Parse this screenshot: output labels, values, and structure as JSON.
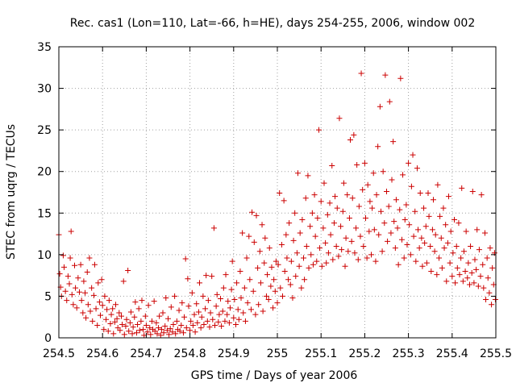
{
  "chart_data": {
    "type": "scatter",
    "title": "Rec. cas1 (Lon=110, Lat=-66, h=HE), days 254-255, 2006, window 002",
    "xlabel": "GPS time / Days of year 2006",
    "ylabel": "STEC from uqrg / TECUs",
    "xlim": [
      254.5,
      255.5
    ],
    "ylim": [
      0,
      35
    ],
    "xticks": [
      254.5,
      254.6,
      254.7,
      254.8,
      254.9,
      255,
      255.1,
      255.2,
      255.3,
      255.4,
      255.5
    ],
    "xtick_labels": [
      "254.5",
      "254.6",
      "254.7",
      "254.8",
      "254.9",
      "255",
      "255.1",
      "255.2",
      "255.3",
      "255.4",
      "255.5"
    ],
    "yticks": [
      0,
      5,
      10,
      15,
      20,
      25,
      30,
      35
    ],
    "ytick_labels": [
      "0",
      "5",
      "10",
      "15",
      "20",
      "25",
      "30",
      "35"
    ],
    "grid": true,
    "marker": "+",
    "color": "#cc0000",
    "points": [
      [
        254.5,
        12.4
      ],
      [
        254.502,
        7.7
      ],
      [
        254.504,
        6.1
      ],
      [
        254.506,
        5.0
      ],
      [
        254.51,
        9.9
      ],
      [
        254.512,
        8.5
      ],
      [
        254.515,
        5.6
      ],
      [
        254.518,
        4.5
      ],
      [
        254.521,
        7.4
      ],
      [
        254.524,
        6.5
      ],
      [
        254.526,
        9.6
      ],
      [
        254.528,
        12.8
      ],
      [
        254.53,
        5.2
      ],
      [
        254.533,
        4.0
      ],
      [
        254.536,
        8.7
      ],
      [
        254.538,
        6.0
      ],
      [
        254.541,
        3.6
      ],
      [
        254.544,
        7.2
      ],
      [
        254.547,
        5.5
      ],
      [
        254.55,
        8.8
      ],
      [
        254.552,
        4.5
      ],
      [
        254.555,
        3.0
      ],
      [
        254.557,
        6.8
      ],
      [
        254.56,
        5.4
      ],
      [
        254.562,
        2.4
      ],
      [
        254.565,
        7.9
      ],
      [
        254.567,
        4.0
      ],
      [
        254.57,
        9.6
      ],
      [
        254.572,
        3.2
      ],
      [
        254.575,
        6.0
      ],
      [
        254.577,
        2.0
      ],
      [
        254.58,
        5.1
      ],
      [
        254.582,
        8.8
      ],
      [
        254.585,
        3.5
      ],
      [
        254.588,
        1.5
      ],
      [
        254.59,
        6.6
      ],
      [
        254.593,
        4.3
      ],
      [
        254.595,
        2.7
      ],
      [
        254.598,
        7.0
      ],
      [
        254.6,
        3.9
      ],
      [
        254.603,
        1.0
      ],
      [
        254.605,
        5.0
      ],
      [
        254.608,
        2.2
      ],
      [
        254.61,
        3.4
      ],
      [
        254.613,
        0.8
      ],
      [
        254.615,
        4.5
      ],
      [
        254.618,
        1.7
      ],
      [
        254.62,
        2.8
      ],
      [
        254.623,
        3.5
      ],
      [
        254.625,
        0.5
      ],
      [
        254.628,
        1.9
      ],
      [
        254.63,
        4.0
      ],
      [
        254.633,
        2.3
      ],
      [
        254.635,
        1.2
      ],
      [
        254.638,
        3.0
      ],
      [
        254.64,
        0.9
      ],
      [
        254.643,
        2.6
      ],
      [
        254.645,
        1.6
      ],
      [
        254.648,
        6.8
      ],
      [
        254.65,
        0.4
      ],
      [
        254.653,
        1.4
      ],
      [
        254.655,
        2.2
      ],
      [
        254.658,
        8.1
      ],
      [
        254.66,
        0.8
      ],
      [
        254.663,
        1.8
      ],
      [
        254.665,
        3.1
      ],
      [
        254.668,
        0.5
      ],
      [
        254.67,
        1.3
      ],
      [
        254.673,
        2.5
      ],
      [
        254.675,
        4.3
      ],
      [
        254.678,
        0.6
      ],
      [
        254.68,
        1.6
      ],
      [
        254.683,
        3.5
      ],
      [
        254.685,
        0.9
      ],
      [
        254.688,
        2.0
      ],
      [
        254.69,
        4.5
      ],
      [
        254.693,
        1.0
      ],
      [
        254.695,
        0.3
      ],
      [
        254.698,
        2.6
      ],
      [
        254.7,
        1.5
      ],
      [
        254.703,
        0.7
      ],
      [
        254.705,
        3.9
      ],
      [
        254.708,
        1.2
      ],
      [
        254.71,
        0.4
      ],
      [
        254.713,
        2.0
      ],
      [
        254.715,
        1.0
      ],
      [
        254.718,
        4.4
      ],
      [
        254.72,
        0.8
      ],
      [
        254.723,
        1.8
      ],
      [
        254.725,
        0.5
      ],
      [
        254.728,
        1.2
      ],
      [
        254.73,
        2.6
      ],
      [
        254.733,
        0.3
      ],
      [
        254.735,
        1.0
      ],
      [
        254.738,
        3.0
      ],
      [
        254.74,
        0.6
      ],
      [
        254.743,
        1.4
      ],
      [
        254.745,
        4.8
      ],
      [
        254.748,
        0.9
      ],
      [
        254.75,
        2.3
      ],
      [
        254.752,
        0.4
      ],
      [
        254.755,
        1.1
      ],
      [
        254.757,
        3.7
      ],
      [
        254.76,
        0.7
      ],
      [
        254.762,
        1.6
      ],
      [
        254.765,
        5.0
      ],
      [
        254.767,
        0.5
      ],
      [
        254.77,
        2.0
      ],
      [
        254.772,
        1.0
      ],
      [
        254.775,
        3.3
      ],
      [
        254.777,
        0.8
      ],
      [
        254.78,
        1.5
      ],
      [
        254.782,
        4.2
      ],
      [
        254.785,
        0.6
      ],
      [
        254.787,
        2.5
      ],
      [
        254.79,
        9.5
      ],
      [
        254.792,
        1.2
      ],
      [
        254.795,
        7.1
      ],
      [
        254.797,
        3.8
      ],
      [
        254.8,
        0.9
      ],
      [
        254.802,
        2.0
      ],
      [
        254.805,
        5.4
      ],
      [
        254.807,
        1.5
      ],
      [
        254.81,
        2.8
      ],
      [
        254.812,
        0.7
      ],
      [
        254.815,
        4.1
      ],
      [
        254.817,
        1.8
      ],
      [
        254.82,
        3.1
      ],
      [
        254.822,
        6.6
      ],
      [
        254.825,
        1.2
      ],
      [
        254.827,
        2.5
      ],
      [
        254.83,
        5.0
      ],
      [
        254.832,
        1.6
      ],
      [
        254.835,
        3.5
      ],
      [
        254.837,
        7.5
      ],
      [
        254.84,
        2.0
      ],
      [
        254.842,
        4.5
      ],
      [
        254.845,
        1.3
      ],
      [
        254.847,
        3.0
      ],
      [
        254.85,
        7.4
      ],
      [
        254.852,
        2.2
      ],
      [
        254.855,
        13.2
      ],
      [
        254.857,
        1.5
      ],
      [
        254.86,
        3.8
      ],
      [
        254.862,
        5.2
      ],
      [
        254.865,
        1.9
      ],
      [
        254.867,
        2.8
      ],
      [
        254.87,
        4.7
      ],
      [
        254.872,
        1.4
      ],
      [
        254.875,
        3.2
      ],
      [
        254.877,
        6.0
      ],
      [
        254.88,
        2.0
      ],
      [
        254.882,
        7.6
      ],
      [
        254.885,
        2.8
      ],
      [
        254.887,
        4.4
      ],
      [
        254.89,
        1.8
      ],
      [
        254.892,
        3.6
      ],
      [
        254.895,
        5.8
      ],
      [
        254.897,
        9.2
      ],
      [
        254.9,
        2.4
      ],
      [
        254.902,
        4.6
      ],
      [
        254.905,
        1.6
      ],
      [
        254.907,
        6.6
      ],
      [
        254.91,
        3.4
      ],
      [
        254.912,
        2.2
      ],
      [
        254.915,
        8.0
      ],
      [
        254.917,
        4.8
      ],
      [
        254.92,
        12.6
      ],
      [
        254.922,
        3.0
      ],
      [
        254.925,
        6.0
      ],
      [
        254.927,
        2.0
      ],
      [
        254.93,
        9.6
      ],
      [
        254.932,
        4.2
      ],
      [
        254.935,
        12.2
      ],
      [
        254.937,
        7.0
      ],
      [
        254.94,
        3.4
      ],
      [
        254.942,
        15.1
      ],
      [
        254.945,
        5.6
      ],
      [
        254.947,
        11.5
      ],
      [
        254.95,
        2.8
      ],
      [
        254.952,
        14.7
      ],
      [
        254.955,
        8.4
      ],
      [
        254.957,
        4.0
      ],
      [
        254.96,
        10.4
      ],
      [
        254.962,
        6.6
      ],
      [
        254.965,
        13.6
      ],
      [
        254.967,
        3.2
      ],
      [
        254.97,
        9.0
      ],
      [
        254.972,
        12.0
      ],
      [
        254.975,
        5.0
      ],
      [
        254.977,
        7.6
      ],
      [
        254.98,
        4.6
      ],
      [
        254.982,
        10.8
      ],
      [
        254.985,
        6.2
      ],
      [
        254.987,
        8.5
      ],
      [
        254.99,
        3.6
      ],
      [
        254.992,
        7.0
      ],
      [
        254.995,
        5.6
      ],
      [
        254.997,
        9.2
      ],
      [
        255.0,
        4.2
      ],
      [
        255.002,
        8.8
      ],
      [
        255.005,
        17.4
      ],
      [
        255.007,
        6.0
      ],
      [
        255.01,
        11.2
      ],
      [
        255.012,
        5.0
      ],
      [
        255.015,
        16.5
      ],
      [
        255.017,
        8.0
      ],
      [
        255.02,
        12.4
      ],
      [
        255.022,
        9.6
      ],
      [
        255.025,
        7.0
      ],
      [
        255.027,
        13.8
      ],
      [
        255.03,
        6.4
      ],
      [
        255.032,
        9.2
      ],
      [
        255.035,
        4.8
      ],
      [
        255.037,
        11.7
      ],
      [
        255.04,
        15.0
      ],
      [
        255.042,
        7.4
      ],
      [
        255.045,
        10.2
      ],
      [
        255.047,
        19.8
      ],
      [
        255.05,
        8.6
      ],
      [
        255.052,
        12.6
      ],
      [
        255.055,
        6.0
      ],
      [
        255.057,
        14.2
      ],
      [
        255.06,
        9.6
      ],
      [
        255.062,
        7.0
      ],
      [
        255.065,
        16.8
      ],
      [
        255.067,
        11.0
      ],
      [
        255.07,
        19.5
      ],
      [
        255.072,
        8.4
      ],
      [
        255.075,
        13.4
      ],
      [
        255.077,
        10.0
      ],
      [
        255.08,
        15.0
      ],
      [
        255.082,
        8.8
      ],
      [
        255.085,
        17.2
      ],
      [
        255.087,
        12.2
      ],
      [
        255.09,
        9.2
      ],
      [
        255.092,
        14.4
      ],
      [
        255.095,
        25.0
      ],
      [
        255.097,
        10.8
      ],
      [
        255.1,
        16.4
      ],
      [
        255.102,
        8.6
      ],
      [
        255.105,
        13.2
      ],
      [
        255.107,
        18.6
      ],
      [
        255.11,
        11.4
      ],
      [
        255.112,
        9.0
      ],
      [
        255.115,
        14.8
      ],
      [
        255.117,
        10.2
      ],
      [
        255.12,
        16.2
      ],
      [
        255.122,
        12.4
      ],
      [
        255.125,
        20.7
      ],
      [
        255.127,
        9.4
      ],
      [
        255.13,
        13.8
      ],
      [
        255.132,
        17.0
      ],
      [
        255.135,
        11.0
      ],
      [
        255.137,
        15.6
      ],
      [
        255.14,
        9.8
      ],
      [
        255.142,
        26.4
      ],
      [
        255.145,
        13.4
      ],
      [
        255.147,
        10.6
      ],
      [
        255.15,
        15.2
      ],
      [
        255.152,
        18.6
      ],
      [
        255.155,
        8.6
      ],
      [
        255.157,
        12.0
      ],
      [
        255.16,
        17.2
      ],
      [
        255.162,
        10.4
      ],
      [
        255.165,
        14.4
      ],
      [
        255.167,
        23.8
      ],
      [
        255.17,
        11.6
      ],
      [
        255.172,
        16.8
      ],
      [
        255.175,
        24.4
      ],
      [
        255.177,
        10.2
      ],
      [
        255.18,
        13.2
      ],
      [
        255.182,
        20.8
      ],
      [
        255.185,
        9.4
      ],
      [
        255.187,
        15.8
      ],
      [
        255.19,
        12.2
      ],
      [
        255.192,
        31.8
      ],
      [
        255.195,
        17.8
      ],
      [
        255.197,
        11.0
      ],
      [
        255.2,
        21.0
      ],
      [
        255.202,
        14.4
      ],
      [
        255.205,
        9.6
      ],
      [
        255.207,
        18.4
      ],
      [
        255.21,
        12.8
      ],
      [
        255.212,
        16.4
      ],
      [
        255.215,
        10.0
      ],
      [
        255.217,
        15.6
      ],
      [
        255.22,
        19.8
      ],
      [
        255.222,
        13.0
      ],
      [
        255.225,
        9.2
      ],
      [
        255.227,
        17.2
      ],
      [
        255.23,
        23.0
      ],
      [
        255.232,
        12.4
      ],
      [
        255.235,
        27.8
      ],
      [
        255.237,
        15.2
      ],
      [
        255.24,
        10.4
      ],
      [
        255.242,
        20.0
      ],
      [
        255.245,
        13.8
      ],
      [
        255.247,
        31.6
      ],
      [
        255.25,
        17.6
      ],
      [
        255.252,
        11.6
      ],
      [
        255.255,
        15.8
      ],
      [
        255.257,
        28.4
      ],
      [
        255.26,
        12.6
      ],
      [
        255.262,
        19.0
      ],
      [
        255.265,
        23.6
      ],
      [
        255.267,
        14.0
      ],
      [
        255.27,
        10.8
      ],
      [
        255.272,
        16.6
      ],
      [
        255.275,
        13.2
      ],
      [
        255.277,
        8.8
      ],
      [
        255.28,
        15.4
      ],
      [
        255.282,
        31.2
      ],
      [
        255.285,
        11.8
      ],
      [
        255.287,
        19.6
      ],
      [
        255.29,
        9.6
      ],
      [
        255.292,
        14.2
      ],
      [
        255.295,
        16.0
      ],
      [
        255.297,
        11.2
      ],
      [
        255.3,
        21.0
      ],
      [
        255.302,
        13.6
      ],
      [
        255.305,
        10.0
      ],
      [
        255.307,
        18.2
      ],
      [
        255.31,
        22.0
      ],
      [
        255.312,
        12.2
      ],
      [
        255.315,
        15.2
      ],
      [
        255.317,
        9.2
      ],
      [
        255.32,
        20.4
      ],
      [
        255.322,
        13.0
      ],
      [
        255.325,
        10.8
      ],
      [
        255.327,
        17.4
      ],
      [
        255.33,
        12.0
      ],
      [
        255.332,
        8.6
      ],
      [
        255.335,
        15.6
      ],
      [
        255.337,
        11.4
      ],
      [
        255.34,
        13.4
      ],
      [
        255.342,
        9.0
      ],
      [
        255.345,
        17.4
      ],
      [
        255.347,
        14.6
      ],
      [
        255.35,
        11.0
      ],
      [
        255.352,
        8.0
      ],
      [
        255.355,
        13.0
      ],
      [
        255.357,
        16.6
      ],
      [
        255.36,
        10.4
      ],
      [
        255.362,
        12.4
      ],
      [
        255.365,
        7.6
      ],
      [
        255.367,
        18.4
      ],
      [
        255.37,
        9.6
      ],
      [
        255.372,
        14.6
      ],
      [
        255.375,
        12.0
      ],
      [
        255.377,
        8.4
      ],
      [
        255.38,
        15.6
      ],
      [
        255.382,
        10.8
      ],
      [
        255.385,
        13.6
      ],
      [
        255.387,
        6.8
      ],
      [
        255.39,
        11.4
      ],
      [
        255.392,
        17.0
      ],
      [
        255.395,
        9.0
      ],
      [
        255.397,
        12.8
      ],
      [
        255.4,
        7.4
      ],
      [
        255.402,
        10.2
      ],
      [
        255.405,
        14.2
      ],
      [
        255.407,
        6.6
      ],
      [
        255.41,
        11.0
      ],
      [
        255.412,
        8.4
      ],
      [
        255.415,
        13.8
      ],
      [
        255.417,
        7.6
      ],
      [
        255.42,
        9.6
      ],
      [
        255.422,
        18.0
      ],
      [
        255.425,
        6.8
      ],
      [
        255.427,
        10.4
      ],
      [
        255.43,
        8.0
      ],
      [
        255.432,
        12.8
      ],
      [
        255.435,
        7.2
      ],
      [
        255.437,
        9.0
      ],
      [
        255.44,
        6.4
      ],
      [
        255.442,
        11.0
      ],
      [
        255.445,
        7.8
      ],
      [
        255.447,
        17.6
      ],
      [
        255.45,
        6.6
      ],
      [
        255.452,
        9.4
      ],
      [
        255.455,
        8.2
      ],
      [
        255.457,
        13.0
      ],
      [
        255.46,
        6.2
      ],
      [
        255.462,
        10.6
      ],
      [
        255.465,
        7.4
      ],
      [
        255.467,
        17.2
      ],
      [
        255.47,
        8.8
      ],
      [
        255.472,
        6.0
      ],
      [
        255.475,
        12.6
      ],
      [
        255.477,
        4.6
      ],
      [
        255.48,
        9.6
      ],
      [
        255.482,
        7.2
      ],
      [
        255.485,
        5.4
      ],
      [
        255.487,
        10.8
      ],
      [
        255.49,
        4.0
      ],
      [
        255.492,
        8.4
      ],
      [
        255.495,
        6.4
      ],
      [
        255.497,
        10.2
      ],
      [
        255.499,
        4.6
      ]
    ]
  }
}
